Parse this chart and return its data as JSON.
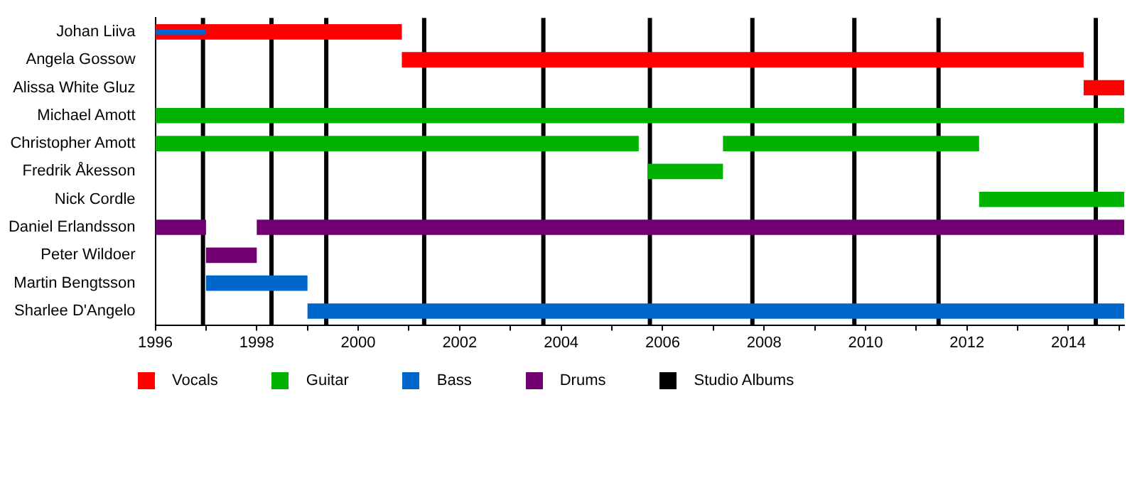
{
  "chart_data": {
    "type": "bar",
    "orientation": "horizontal",
    "stacked": false,
    "categories": [
      "Johan Liiva",
      "Angela Gossow",
      "Alissa White Gluz",
      "Michael Amott",
      "Christopher Amott",
      "Fredrik Åkesson",
      "Nick Cordle",
      "Daniel Erlandsson",
      "Peter Wildoer",
      "Martin Bengtsson",
      "Sharlee D'Angelo"
    ],
    "series": [
      {
        "name": "Vocals",
        "color": "#ff0000",
        "base": [
          1996,
          2000.86,
          2014.3,
          null,
          null,
          null,
          null,
          null,
          null,
          null,
          null
        ],
        "values": [
          4.86,
          13.44,
          0.8,
          null,
          null,
          null,
          null,
          null,
          null,
          null,
          null
        ]
      },
      {
        "name": "Guitar",
        "color": "#00b300",
        "base": [
          null,
          null,
          null,
          1996,
          1996,
          null,
          2012.24,
          null,
          null,
          null,
          null
        ],
        "values": [
          null,
          null,
          null,
          19.1,
          9.53,
          null,
          2.86,
          null,
          null,
          null,
          null
        ]
      },
      {
        "color": "#00b300",
        "base": [
          null,
          null,
          null,
          null,
          2007.19,
          2005.7,
          null,
          null,
          null,
          null,
          null
        ],
        "values": [
          null,
          null,
          null,
          null,
          5.05,
          1.49,
          null,
          null,
          null,
          null,
          null
        ]
      },
      {
        "name": "Bass",
        "color": "#0066cc",
        "base": [
          null,
          null,
          null,
          null,
          null,
          null,
          null,
          null,
          null,
          1997,
          1999
        ],
        "values": [
          null,
          null,
          null,
          null,
          null,
          null,
          null,
          null,
          null,
          2,
          16.1
        ]
      },
      {
        "name": "Drums",
        "color": "#730073",
        "base": [
          null,
          null,
          null,
          null,
          null,
          null,
          null,
          1996,
          1997,
          null,
          null
        ],
        "values": [
          null,
          null,
          null,
          null,
          null,
          null,
          null,
          1,
          1,
          null,
          null
        ]
      },
      {
        "color": "#730073",
        "base": [
          null,
          null,
          null,
          null,
          null,
          null,
          null,
          1998,
          null,
          null,
          null
        ],
        "values": [
          null,
          null,
          null,
          null,
          null,
          null,
          null,
          17.1,
          null,
          null,
          null
        ]
      },
      {
        "color": "#0066cc",
        "base": [
          1996,
          null,
          null,
          null,
          null,
          null,
          null,
          null,
          null,
          null,
          null
        ],
        "values": [
          1,
          null,
          null,
          null,
          null,
          null,
          null,
          null,
          null,
          null,
          null
        ]
      }
    ],
    "xlim": [
      1996,
      2015.1
    ],
    "xticks": [
      1996,
      {
        "value": 1997,
        "label": null
      },
      1998,
      {
        "value": 1999,
        "label": null
      },
      2000,
      {
        "value": 2001,
        "label": null
      },
      2002,
      {
        "value": 2003,
        "label": null
      },
      2004,
      {
        "value": 2005,
        "label": null
      },
      2006,
      {
        "value": 2007,
        "label": null
      },
      2008,
      {
        "value": 2009,
        "label": null
      },
      2010,
      {
        "value": 2011,
        "label": null
      },
      2012,
      {
        "value": 2013,
        "label": null
      },
      2014,
      {
        "value": 2015,
        "label": null
      }
    ],
    "ref_lines": [
      {
        "axis": "x",
        "value": 1996.94,
        "label": "Studio Albums",
        "color": "#000000"
      },
      {
        "axis": "x",
        "value": 1998.29,
        "color": "#000000"
      },
      {
        "axis": "x",
        "value": 1999.37,
        "color": "#000000"
      },
      {
        "axis": "x",
        "value": 2001.3,
        "color": "#000000"
      },
      {
        "axis": "x",
        "value": 2003.65,
        "color": "#000000"
      },
      {
        "axis": "x",
        "value": 2005.75,
        "color": "#000000"
      },
      {
        "axis": "x",
        "value": 2007.77,
        "color": "#000000"
      },
      {
        "axis": "x",
        "value": 2009.78,
        "color": "#000000"
      },
      {
        "axis": "x",
        "value": 2011.44,
        "color": "#000000"
      },
      {
        "axis": "x",
        "value": 2014.54,
        "color": "#000000"
      }
    ],
    "grid": false,
    "legend": "bottom left"
  }
}
